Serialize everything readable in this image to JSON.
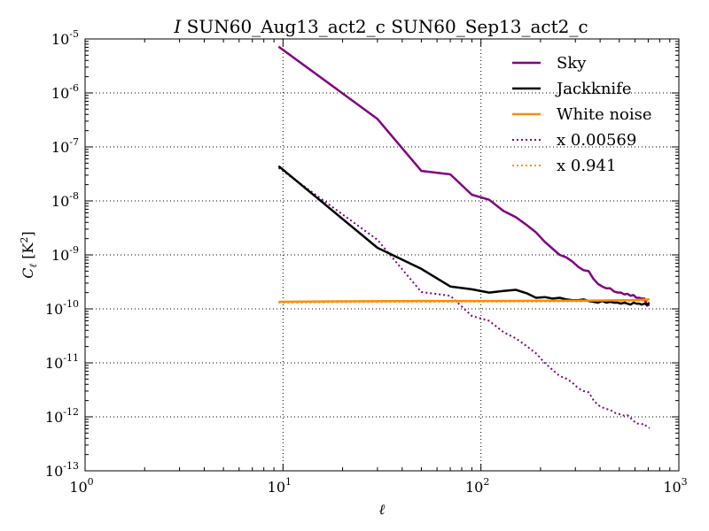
{
  "chart_data": {
    "type": "line",
    "title_italic": "I",
    "title_rest": " SUN60_Aug13_act2_c SUN60_Sep13_act2_c",
    "xlabel": "ℓ",
    "ylabel_main": "C",
    "ylabel_sub": "ℓ",
    "ylabel_unit": " [K",
    "ylabel_unit_exp": "2",
    "ylabel_unit_close": "]",
    "xscale": "log",
    "yscale": "log",
    "xlim": [
      1,
      1000
    ],
    "ylim": [
      1e-13,
      1e-05
    ],
    "grid": true,
    "legend_position": "top-right",
    "x_ticks": [
      {
        "value": 1,
        "base": "10",
        "exp": "0"
      },
      {
        "value": 10,
        "base": "10",
        "exp": "1"
      },
      {
        "value": 100,
        "base": "10",
        "exp": "2"
      },
      {
        "value": 1000,
        "base": "10",
        "exp": "3"
      }
    ],
    "y_ticks": [
      {
        "value": 1e-05,
        "base": "10",
        "exp": "-5"
      },
      {
        "value": 1e-06,
        "base": "10",
        "exp": "-6"
      },
      {
        "value": 1e-07,
        "base": "10",
        "exp": "-7"
      },
      {
        "value": 1e-08,
        "base": "10",
        "exp": "-8"
      },
      {
        "value": 1e-09,
        "base": "10",
        "exp": "-9"
      },
      {
        "value": 1e-10,
        "base": "10",
        "exp": "-10"
      },
      {
        "value": 1e-11,
        "base": "10",
        "exp": "-11"
      },
      {
        "value": 1e-12,
        "base": "10",
        "exp": "-12"
      },
      {
        "value": 1e-13,
        "base": "10",
        "exp": "-13"
      }
    ],
    "series": [
      {
        "name": "Sky",
        "color": "#800080",
        "style": "solid",
        "x": [
          9.5,
          30,
          50,
          70,
          90,
          110,
          130,
          150,
          170,
          190,
          210,
          230,
          250,
          270,
          290,
          310,
          330,
          350,
          370,
          390,
          410,
          430,
          450,
          470,
          490,
          510,
          530,
          550,
          570,
          590,
          610,
          630,
          650,
          670,
          690,
          710
        ],
        "y": [
          7.2e-06,
          3.3e-07,
          3.6e-08,
          3.1e-08,
          1.3e-08,
          1.05e-08,
          6.5e-09,
          5e-09,
          3.6e-09,
          2.6e-09,
          1.75e-09,
          1.3e-09,
          1e-09,
          9e-10,
          7.5e-10,
          6e-10,
          5.2e-10,
          5e-10,
          3.6e-10,
          2.9e-10,
          2.6e-10,
          2.4e-10,
          2.4e-10,
          2.1e-10,
          2e-10,
          2e-10,
          1.85e-10,
          1.9e-10,
          1.75e-10,
          1.8e-10,
          1.6e-10,
          1.6e-10,
          1.55e-10,
          1.55e-10,
          1.15e-10,
          1.2e-10
        ]
      },
      {
        "name": "Jackknife",
        "color": "#000000",
        "style": "solid",
        "x": [
          9.5,
          30,
          50,
          70,
          90,
          110,
          130,
          150,
          170,
          190,
          210,
          230,
          250,
          270,
          290,
          310,
          330,
          350,
          370,
          390,
          410,
          430,
          450,
          470,
          490,
          510,
          530,
          550,
          570,
          590,
          610,
          630,
          650,
          670,
          690,
          710
        ],
        "y": [
          4.4e-08,
          1.35e-09,
          5.5e-10,
          2.6e-10,
          2.3e-10,
          2e-10,
          2.15e-10,
          2.25e-10,
          1.95e-10,
          1.6e-10,
          1.65e-10,
          1.55e-10,
          1.6e-10,
          1.5e-10,
          1.45e-10,
          1.45e-10,
          1.5e-10,
          1.4e-10,
          1.35e-10,
          1.3e-10,
          1.4e-10,
          1.3e-10,
          1.35e-10,
          1.3e-10,
          1.3e-10,
          1.25e-10,
          1.3e-10,
          1.25e-10,
          1.2e-10,
          1.3e-10,
          1.25e-10,
          1.25e-10,
          1.2e-10,
          1.25e-10,
          1.2e-10,
          1.3e-10
        ]
      },
      {
        "name": "White noise",
        "color": "#ff8c00",
        "style": "solid",
        "x": [
          9.5,
          20,
          50,
          100,
          200,
          300,
          400,
          500,
          600,
          710
        ],
        "y": [
          1.35e-10,
          1.38e-10,
          1.4e-10,
          1.4e-10,
          1.41e-10,
          1.42e-10,
          1.43e-10,
          1.44e-10,
          1.45e-10,
          1.5e-10
        ]
      },
      {
        "name": "x 0.00569",
        "color": "#800080",
        "style": "dotted",
        "x": [
          9.5,
          30,
          50,
          70,
          90,
          110,
          130,
          150,
          170,
          190,
          210,
          230,
          250,
          270,
          290,
          310,
          330,
          350,
          370,
          390,
          410,
          430,
          450,
          470,
          490,
          510,
          530,
          550,
          570,
          590,
          610,
          630,
          650,
          670,
          690,
          710
        ],
        "y": [
          4.1e-08,
          1.9e-09,
          2.05e-10,
          1.75e-10,
          7.4e-11,
          6e-11,
          3.7e-11,
          2.85e-11,
          2.05e-11,
          1.5e-11,
          1e-11,
          7.4e-12,
          5.7e-12,
          5.1e-12,
          4.3e-12,
          3.4e-12,
          3e-12,
          2.85e-12,
          2.05e-12,
          1.65e-12,
          1.5e-12,
          1.4e-12,
          1.35e-12,
          1.2e-12,
          1.15e-12,
          1.1e-12,
          1.05e-12,
          1.08e-12,
          9.5e-13,
          8.5e-13,
          7.5e-13,
          7.5e-13,
          7.3e-13,
          7.4e-13,
          6.5e-13,
          6.2e-13
        ]
      },
      {
        "name": "x 0.941",
        "color": "#ff8c00",
        "style": "dotted",
        "x": [
          9.5,
          20,
          50,
          100,
          200,
          300,
          400,
          500,
          600,
          710
        ],
        "y": [
          1.3e-10,
          1.33e-10,
          1.35e-10,
          1.36e-10,
          1.37e-10,
          1.38e-10,
          1.39e-10,
          1.4e-10,
          1.41e-10,
          1.42e-10
        ]
      }
    ]
  }
}
